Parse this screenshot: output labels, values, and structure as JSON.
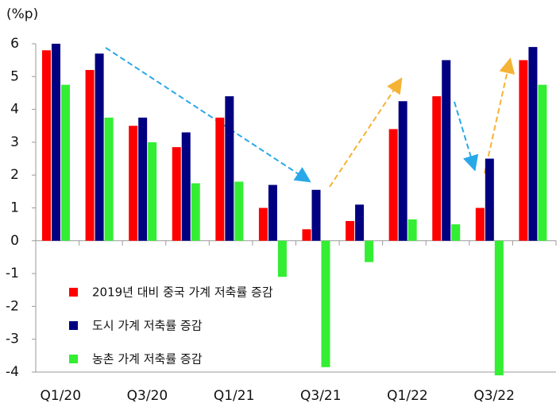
{
  "chart_data": {
    "type": "bar",
    "y_label": "(%p)",
    "categories": [
      "Q1/20",
      null,
      "Q3/20",
      null,
      "Q1/21",
      null,
      "Q3/21",
      null,
      "Q1/22",
      null,
      "Q3/22",
      null
    ],
    "series": [
      {
        "name": "2019년 대비 중국 가계 저축률 증감",
        "color": "#ff0000",
        "values": [
          5.8,
          5.2,
          3.5,
          2.85,
          3.75,
          1.0,
          0.35,
          0.6,
          3.4,
          4.4,
          1.0,
          5.5
        ]
      },
      {
        "name": "도시 가계 저축률 증감",
        "color": "#000080",
        "values": [
          6.0,
          5.7,
          3.75,
          3.3,
          4.4,
          1.7,
          1.55,
          1.1,
          4.25,
          5.5,
          2.5,
          5.9
        ]
      },
      {
        "name": "농촌 가계 저축률 증감",
        "color": "#33ee33",
        "values": [
          4.75,
          3.75,
          3.0,
          1.75,
          1.8,
          -1.1,
          -3.85,
          -0.65,
          0.65,
          0.5,
          -4.1,
          4.75
        ]
      }
    ],
    "ylim": [
      -4,
      6
    ],
    "yticks": [
      -4,
      -3,
      -2,
      -1,
      0,
      1,
      2,
      3,
      4,
      5,
      6
    ]
  }
}
